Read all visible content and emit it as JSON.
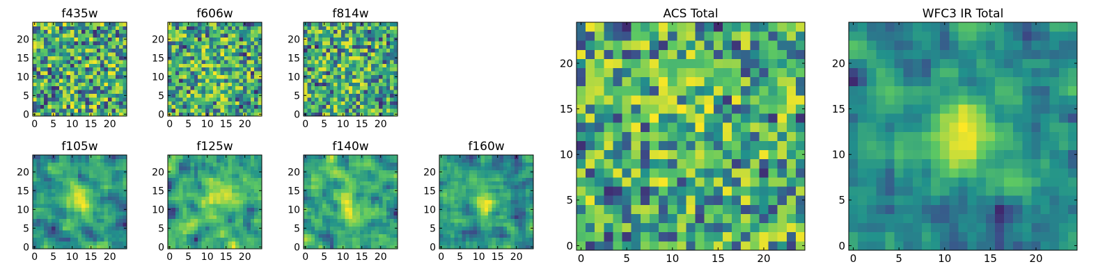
{
  "figure": {
    "panels": [
      {
        "id": "f435w",
        "title": "f435w",
        "seed": 435,
        "smooth": 0,
        "blob": 0.0,
        "xticks": [
          0,
          5,
          10,
          15,
          20
        ],
        "yticks": [
          0,
          5,
          10,
          15,
          20
        ]
      },
      {
        "id": "f606w",
        "title": "f606w",
        "seed": 606,
        "smooth": 0,
        "blob": 0.15,
        "xticks": [
          0,
          5,
          10,
          15,
          20
        ],
        "yticks": [
          0,
          5,
          10,
          15,
          20
        ]
      },
      {
        "id": "f814w",
        "title": "f814w",
        "seed": 814,
        "smooth": 0,
        "blob": 0.15,
        "xticks": [
          0,
          5,
          10,
          15,
          20
        ],
        "yticks": [
          0,
          5,
          10,
          15,
          20
        ]
      },
      {
        "id": "f105w",
        "title": "f105w",
        "seed": 105,
        "smooth": 1,
        "blob": 0.35,
        "xticks": [
          0,
          5,
          10,
          15,
          20
        ],
        "yticks": [
          0,
          5,
          10,
          15,
          20
        ]
      },
      {
        "id": "f125w",
        "title": "f125w",
        "seed": 125,
        "smooth": 1,
        "blob": 0.3,
        "xticks": [
          0,
          5,
          10,
          15,
          20
        ],
        "yticks": [
          0,
          5,
          10,
          15,
          20
        ]
      },
      {
        "id": "f140w",
        "title": "f140w",
        "seed": 140,
        "smooth": 1,
        "blob": 0.3,
        "xticks": [
          0,
          5,
          10,
          15,
          20
        ],
        "yticks": [
          0,
          5,
          10,
          15,
          20
        ]
      },
      {
        "id": "f160w",
        "title": "f160w",
        "seed": 160,
        "smooth": 1,
        "blob": 0.4,
        "xticks": [
          0,
          5,
          10,
          15,
          20
        ],
        "yticks": [
          0,
          5,
          10,
          15,
          20
        ]
      },
      {
        "id": "acs-total",
        "title": "ACS Total",
        "seed": 777,
        "smooth": 0,
        "blob": 0.15,
        "xticks": [
          0,
          5,
          10,
          15,
          20
        ],
        "yticks": [
          0,
          5,
          10,
          15,
          20
        ]
      },
      {
        "id": "wfc3-ir-total",
        "title": "WFC3 IR Total",
        "seed": 999,
        "smooth": 1,
        "blob": 0.55,
        "xticks": [
          0,
          5,
          10,
          15,
          20
        ],
        "yticks": [
          0,
          5,
          10,
          15,
          20
        ]
      }
    ]
  },
  "chart_data": {
    "type": "heatmap",
    "grid_size": [
      25,
      25
    ],
    "colormap": "viridis",
    "xlim": [
      0,
      24
    ],
    "ylim": [
      0,
      24
    ],
    "source_center": [
      12,
      12
    ],
    "panels": [
      "f435w",
      "f606w",
      "f814w",
      "f105w",
      "f125w",
      "f140w",
      "f160w",
      "ACS Total",
      "WFC3 IR Total"
    ]
  },
  "colors": {
    "cmap": [
      "#440154",
      "#3b528b",
      "#21918c",
      "#5ec962",
      "#fde725"
    ],
    "frame": "#000000",
    "background": "#ffffff"
  }
}
